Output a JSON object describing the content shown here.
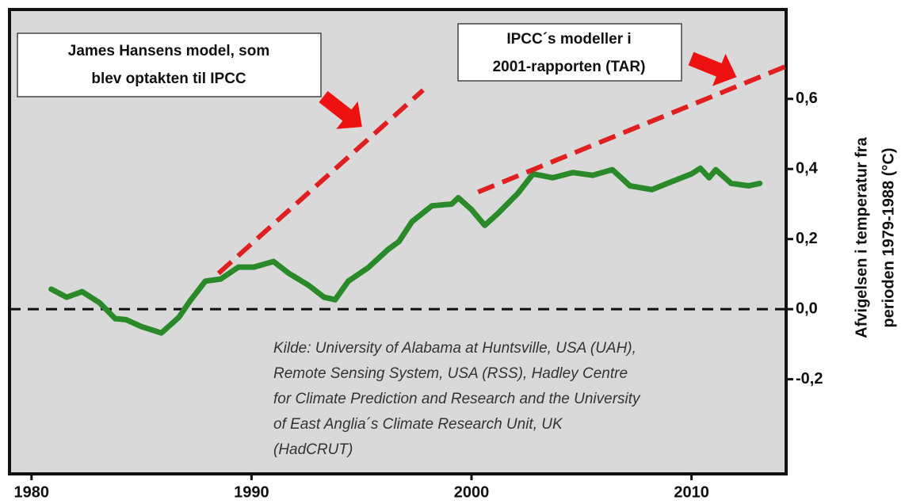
{
  "chart_data": {
    "type": "line",
    "xlim": [
      1979,
      2014.3
    ],
    "xticks": [
      1980,
      1990,
      2000,
      2010
    ],
    "ylim": [
      -0.47,
      0.855
    ],
    "yticks": [
      {
        "value": 0.6,
        "label": "0,6"
      },
      {
        "value": 0.4,
        "label": "0,4"
      },
      {
        "value": 0.2,
        "label": "0,2"
      },
      {
        "value": 0.0,
        "label": "0,0"
      },
      {
        "value": -0.2,
        "label": "-0,2"
      }
    ],
    "y_axis_label": [
      "Afvigelsen i temperatur fra",
      "perioden 1979-1988 (°C)"
    ],
    "reference_line": {
      "y": 0
    },
    "series": [
      {
        "color": "#2a8a2a",
        "style": "solid",
        "x": [
          1980.9,
          1981.6,
          1982.3,
          1983.1,
          1983.8,
          1984.3,
          1985.0,
          1985.9,
          1986.7,
          1987.2,
          1987.9,
          1988.6,
          1989.4,
          1990.1,
          1991.0,
          1991.7,
          1992.6,
          1993.3,
          1993.8,
          1994.4,
          1995.3,
          1996.2,
          1996.7,
          1997.3,
          1998.2,
          1999.1,
          1999.4,
          2000.0,
          2000.6,
          2001.2,
          2002.1,
          2002.8,
          2003.7,
          2004.6,
          2005.5,
          2006.4,
          2007.2,
          2008.2,
          2009.1,
          2010.0,
          2010.4,
          2010.8,
          2011.1,
          2011.8,
          2012.6,
          2013.1
        ],
        "values": [
          0.057,
          0.034,
          0.05,
          0.018,
          -0.027,
          -0.03,
          -0.05,
          -0.068,
          -0.023,
          0.023,
          0.08,
          0.086,
          0.12,
          0.12,
          0.136,
          0.102,
          0.068,
          0.034,
          0.027,
          0.08,
          0.118,
          0.17,
          0.193,
          0.25,
          0.295,
          0.3,
          0.318,
          0.284,
          0.239,
          0.273,
          0.33,
          0.386,
          0.375,
          0.39,
          0.382,
          0.398,
          0.352,
          0.341,
          0.364,
          0.386,
          0.402,
          0.375,
          0.398,
          0.359,
          0.352,
          0.359
        ]
      },
      {
        "color": "#e02020",
        "style": "dashed",
        "x": [
          1988.5,
          1997.8
        ],
        "values": [
          0.102,
          0.625
        ]
      },
      {
        "color": "#e02020",
        "style": "dashed",
        "x": [
          2000.3,
          2014.3
        ],
        "values": [
          0.334,
          0.693
        ]
      }
    ],
    "annotations": [
      {
        "lines": [
          "James Hansens model, som",
          "blev optakten til IPCC"
        ]
      },
      {
        "lines": [
          "IPCC´s modeller i",
          "2001-rapporten (TAR)"
        ]
      }
    ],
    "source": [
      "Kilde: University of Alabama at Huntsville, USA (UAH),",
      "Remote Sensing System, USA (RSS), Hadley Centre",
      "for Climate Prediction and Research and the University",
      "of East Anglia´s Climate Research Unit, UK",
      "(HadCRUT)"
    ]
  }
}
